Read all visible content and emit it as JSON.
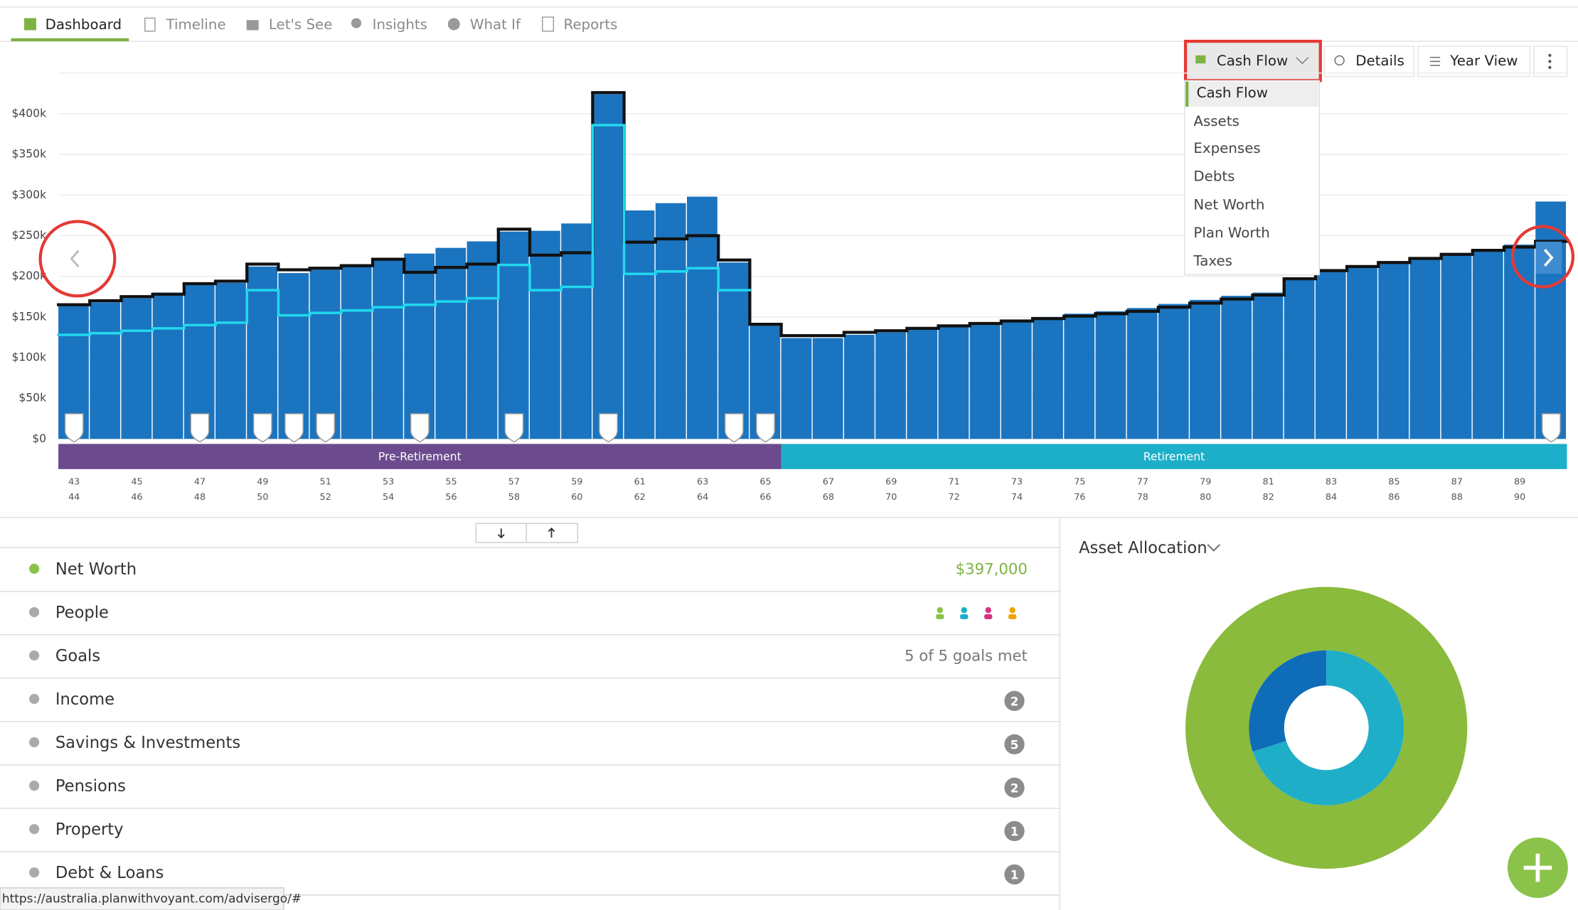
{
  "tabs": [
    "Dashboard",
    "Timeline",
    "Let's See",
    "Insights",
    "What If",
    "Reports"
  ],
  "toolbar": {
    "chart_selector": "Cash Flow",
    "details": "Details",
    "year_view": "Year View"
  },
  "chart_menu": [
    "Cash Flow",
    "Assets",
    "Expenses",
    "Debts",
    "Net Worth",
    "Plan Worth",
    "Taxes"
  ],
  "chart_data": {
    "type": "bar",
    "categories": [
      "43",
      "44",
      "45",
      "46",
      "47",
      "48",
      "49",
      "50",
      "51",
      "52",
      "53",
      "54",
      "55",
      "56",
      "57",
      "58",
      "59",
      "60",
      "61",
      "62",
      "63",
      "64",
      "65",
      "66",
      "67",
      "68",
      "69",
      "70",
      "71",
      "72",
      "73",
      "74",
      "75",
      "76",
      "77",
      "78",
      "79",
      "80",
      "81",
      "82",
      "83",
      "84",
      "85",
      "86",
      "87",
      "88",
      "89",
      "90"
    ],
    "series": [
      {
        "color": "#1b74bf",
        "values": [
          165000,
          168000,
          173000,
          180000,
          190000,
          192000,
          212000,
          204000,
          208000,
          215000,
          221000,
          228000,
          235000,
          243000,
          255000,
          256000,
          265000,
          424000,
          281000,
          290000,
          298000,
          217000,
          142000,
          124000,
          124000,
          128000,
          131000,
          135000,
          139000,
          142000,
          146000,
          150000,
          154000,
          157000,
          161000,
          166000,
          171000,
          176000,
          180000,
          197000,
          207000,
          212000,
          217000,
          223000,
          228000,
          232000,
          239000,
          292000
        ]
      },
      {
        "type": "line",
        "color": "#111111",
        "values": [
          165000,
          170000,
          175000,
          178000,
          191000,
          194000,
          215000,
          208000,
          210000,
          213000,
          221000,
          205000,
          211000,
          215000,
          258000,
          226000,
          229000,
          426000,
          242000,
          246000,
          250000,
          220000,
          141000,
          127000,
          127000,
          131000,
          133000,
          136000,
          139000,
          142000,
          145000,
          148000,
          151000,
          154000,
          157000,
          162000,
          167000,
          172000,
          177000,
          197000,
          207000,
          212000,
          217000,
          222000,
          227000,
          232000,
          236000,
          243000
        ]
      },
      {
        "type": "line",
        "color": "#22d8ee",
        "values": [
          128000,
          130000,
          133000,
          136000,
          140000,
          143000,
          183000,
          152000,
          155000,
          158000,
          162000,
          165000,
          169000,
          173000,
          214000,
          183000,
          187000,
          386000,
          203000,
          206000,
          210000,
          183000,
          null,
          null,
          null,
          null,
          null,
          null,
          null,
          null,
          null,
          null,
          null,
          null,
          null,
          null,
          null,
          null,
          null,
          null,
          null,
          null,
          null,
          null,
          null,
          null,
          null,
          null
        ]
      }
    ],
    "ylim": [
      0,
      450000
    ],
    "yticks": [
      {
        "value": 0,
        "label": "$0"
      },
      {
        "value": 50000,
        "label": "$50k"
      },
      {
        "value": 100000,
        "label": "$100k"
      },
      {
        "value": 150000,
        "label": "$150k"
      },
      {
        "value": 200000,
        "label": "$200k"
      },
      {
        "value": 250000,
        "label": "$250k"
      },
      {
        "value": 300000,
        "label": "$300k"
      },
      {
        "value": 350000,
        "label": "$350k"
      },
      {
        "value": 400000,
        "label": "$400k"
      }
    ],
    "grid": true,
    "phases": [
      {
        "label": "Pre-Retirement",
        "color": "#6b4a8d"
      },
      {
        "label": "Retirement",
        "color": "#1cafc9"
      }
    ]
  },
  "summary": {
    "rows": [
      {
        "label": "Net Worth",
        "value": "$397,000"
      },
      {
        "label": "People"
      },
      {
        "label": "Goals",
        "value": "5 of 5 goals met"
      },
      {
        "label": "Income",
        "count": 2
      },
      {
        "label": "Savings & Investments",
        "count": 5
      },
      {
        "label": "Pensions",
        "count": 2
      },
      {
        "label": "Property",
        "count": 1
      },
      {
        "label": "Debt & Loans",
        "count": 1
      }
    ]
  },
  "asset_allocation": {
    "title": "Asset Allocation",
    "outer": {
      "color": "#8abb3d",
      "values": [
        100
      ]
    },
    "inner": {
      "colors": [
        "#0e6cb8",
        "#1eaec8"
      ],
      "values": [
        30,
        70
      ]
    }
  },
  "status_url": "https://australia.planwithvoyant.com/advisergo/#"
}
